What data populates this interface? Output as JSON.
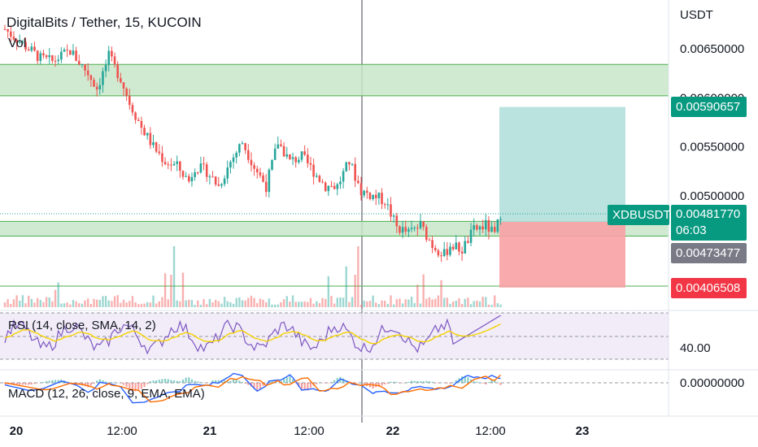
{
  "header": {
    "title": "DigitalBits / Tether, 15, KUCOIN",
    "vol_label": "Vol",
    "currency": "USDT"
  },
  "indicators": {
    "rsi_label": "RSI (14, close, SMA, 14, 2)",
    "rsi_value_label": "40.00",
    "macd_label": "MACD (12, 26, close, 9, EMA, EMA)",
    "macd_value_label": "0.00000000"
  },
  "price_tags": {
    "target": "0.00590657",
    "symbol": "XDBUSDT",
    "last": "0.00481770",
    "countdown": "06:03",
    "entry": "0.00473477",
    "stop": "0.00406508"
  },
  "colors": {
    "up": "#26a69a",
    "down": "#ef5350",
    "zone_fill": "#c8e6c9",
    "zone_line": "#4caf50",
    "target_zone": "#b2dfdb",
    "stop_zone": "#f7a1a4",
    "rsi_band": "#ede7f6",
    "rsi_line": "#7e57c2",
    "rsi_ma": "#f5d100",
    "macd_line": "#2962ff",
    "signal_line": "#ff6d00"
  },
  "chart_data": {
    "type": "candlestick",
    "symbol": "XDBUSDT",
    "exchange": "KUCOIN",
    "interval": "15",
    "y_axis_ticks": [
      "0.00650000",
      "0.00600000",
      "0.00550000",
      "0.00500000"
    ],
    "x_axis_ticks": [
      "20",
      "12:00",
      "21",
      "12:00",
      "22",
      "12:00",
      "23"
    ],
    "ylim": [
      0.004,
      0.0068
    ],
    "price_path": [
      [
        0,
        0.0067
      ],
      [
        6,
        0.00655
      ],
      [
        12,
        0.0064
      ],
      [
        16,
        0.00637
      ],
      [
        22,
        0.00648
      ],
      [
        28,
        0.00625
      ],
      [
        31,
        0.0061
      ],
      [
        33,
        0.00625
      ],
      [
        35,
        0.00642
      ],
      [
        39,
        0.0062
      ],
      [
        42,
        0.00595
      ],
      [
        46,
        0.0057
      ],
      [
        50,
        0.0055
      ],
      [
        54,
        0.00535
      ],
      [
        58,
        0.0053
      ],
      [
        62,
        0.00515
      ],
      [
        64,
        0.0053
      ],
      [
        68,
        0.00525
      ],
      [
        72,
        0.0051
      ],
      [
        76,
        0.00535
      ],
      [
        80,
        0.00555
      ],
      [
        84,
        0.0053
      ],
      [
        88,
        0.0051
      ],
      [
        92,
        0.00555
      ],
      [
        96,
        0.00535
      ],
      [
        100,
        0.0054
      ],
      [
        104,
        0.00525
      ],
      [
        108,
        0.0051
      ],
      [
        112,
        0.0051
      ],
      [
        116,
        0.00535
      ],
      [
        120,
        0.00505
      ],
      [
        124,
        0.005
      ],
      [
        128,
        0.00495
      ],
      [
        132,
        0.00468
      ],
      [
        136,
        0.00462
      ],
      [
        140,
        0.0047
      ],
      [
        144,
        0.0045
      ],
      [
        148,
        0.0044
      ],
      [
        150,
        0.0045
      ],
      [
        154,
        0.00445
      ],
      [
        158,
        0.00465
      ],
      [
        162,
        0.0047
      ],
      [
        165,
        0.0046
      ],
      [
        167,
        0.00482
      ]
    ],
    "zones": [
      {
        "name": "resistance",
        "from": 0.00602,
        "to": 0.00634
      },
      {
        "name": "support",
        "from": 0.00459,
        "to": 0.00474
      }
    ],
    "position": {
      "entry": 0.00473477,
      "target": 0.00590657,
      "stop": 0.00406508
    },
    "last_price": 0.0048177
  }
}
